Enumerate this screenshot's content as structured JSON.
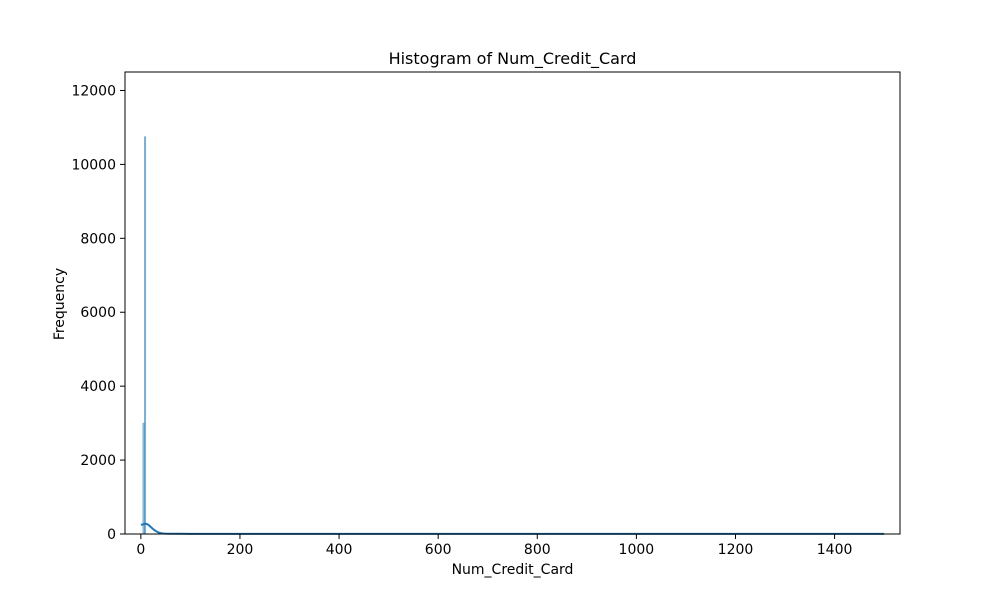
{
  "chart_data": {
    "type": "bar",
    "title": "Histogram of Num_Credit_Card",
    "xlabel": "Num_Credit_Card",
    "ylabel": "Frequency",
    "xlim": [
      -32,
      1532
    ],
    "ylim": [
      0,
      12500
    ],
    "xticks": [
      0,
      200,
      400,
      600,
      800,
      1000,
      1200,
      1400
    ],
    "yticks": [
      0,
      2000,
      4000,
      6000,
      8000,
      10000,
      12000
    ],
    "grid": false,
    "legend": "none",
    "bar_color": "#1f77b4",
    "kde_color": "#1f77b4",
    "bins": [
      {
        "x0": 4,
        "x1": 7,
        "value": 3000
      },
      {
        "x0": 7,
        "x1": 10,
        "value": 10750
      }
    ],
    "kde": {
      "x": [
        0,
        5,
        10,
        15,
        20,
        25,
        30,
        35,
        40,
        45,
        50,
        60,
        80,
        100,
        150,
        200,
        300,
        400,
        500,
        600,
        700,
        800,
        900,
        1000,
        1100,
        1200,
        1300,
        1400,
        1500
      ],
      "y": [
        250,
        260,
        280,
        250,
        190,
        130,
        80,
        45,
        25,
        15,
        10,
        8,
        6,
        5,
        5,
        5,
        5,
        5,
        5,
        5,
        5,
        5,
        5,
        5,
        5,
        5,
        5,
        5,
        5
      ]
    }
  }
}
